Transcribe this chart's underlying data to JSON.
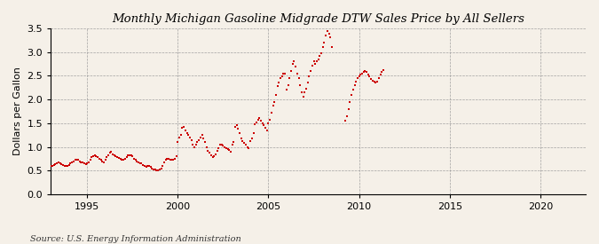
{
  "title": "Monthly Michigan Gasoline Midgrade DTW Sales Price by All Sellers",
  "ylabel": "Dollars per Gallon",
  "source": "Source: U.S. Energy Information Administration",
  "background_color": "#f5f0e8",
  "marker_color": "#cc0000",
  "xlim": [
    1993.0,
    2022.5
  ],
  "ylim": [
    0.0,
    3.5
  ],
  "yticks": [
    0.0,
    0.5,
    1.0,
    1.5,
    2.0,
    2.5,
    3.0,
    3.5
  ],
  "xticks": [
    1995,
    2000,
    2005,
    2010,
    2015,
    2020
  ],
  "data": {
    "dates": [
      1993.0,
      1993.08,
      1993.17,
      1993.25,
      1993.33,
      1993.42,
      1993.5,
      1993.58,
      1993.67,
      1993.75,
      1993.83,
      1993.92,
      1994.0,
      1994.08,
      1994.17,
      1994.25,
      1994.33,
      1994.42,
      1994.5,
      1994.58,
      1994.67,
      1994.75,
      1994.83,
      1994.92,
      1995.0,
      1995.08,
      1995.17,
      1995.25,
      1995.33,
      1995.42,
      1995.5,
      1995.58,
      1995.67,
      1995.75,
      1995.83,
      1995.92,
      1996.0,
      1996.08,
      1996.17,
      1996.25,
      1996.33,
      1996.42,
      1996.5,
      1996.58,
      1996.67,
      1996.75,
      1996.83,
      1996.92,
      1997.0,
      1997.08,
      1997.17,
      1997.25,
      1997.33,
      1997.42,
      1997.5,
      1997.58,
      1997.67,
      1997.75,
      1997.83,
      1997.92,
      1998.0,
      1998.08,
      1998.17,
      1998.25,
      1998.33,
      1998.42,
      1998.5,
      1998.58,
      1998.67,
      1998.75,
      1998.83,
      1998.92,
      1999.0,
      1999.08,
      1999.17,
      1999.25,
      1999.33,
      1999.42,
      1999.5,
      1999.58,
      1999.67,
      1999.75,
      1999.83,
      1999.92,
      2000.0,
      2000.08,
      2000.17,
      2000.25,
      2000.33,
      2000.42,
      2000.5,
      2000.58,
      2000.67,
      2000.75,
      2000.83,
      2000.92,
      2001.0,
      2001.08,
      2001.17,
      2001.25,
      2001.33,
      2001.42,
      2001.5,
      2001.58,
      2001.67,
      2001.75,
      2001.83,
      2001.92,
      2002.0,
      2002.08,
      2002.17,
      2002.25,
      2002.33,
      2002.42,
      2002.5,
      2002.58,
      2002.67,
      2002.75,
      2002.83,
      2002.92,
      2003.0,
      2003.08,
      2003.17,
      2003.25,
      2003.33,
      2003.42,
      2003.5,
      2003.58,
      2003.67,
      2003.75,
      2003.83,
      2003.92,
      2004.0,
      2004.08,
      2004.17,
      2004.25,
      2004.33,
      2004.42,
      2004.5,
      2004.58,
      2004.67,
      2004.75,
      2004.83,
      2004.92,
      2005.0,
      2005.08,
      2005.17,
      2005.25,
      2005.33,
      2005.42,
      2005.5,
      2005.58,
      2005.67,
      2005.75,
      2005.83,
      2005.92,
      2006.0,
      2006.08,
      2006.17,
      2006.25,
      2006.33,
      2006.42,
      2006.5,
      2006.58,
      2006.67,
      2006.75,
      2006.83,
      2006.92,
      2007.0,
      2007.08,
      2007.17,
      2007.25,
      2007.33,
      2007.42,
      2007.5,
      2007.58,
      2007.67,
      2007.75,
      2007.83,
      2007.92,
      2008.0,
      2008.08,
      2008.17,
      2008.25,
      2008.33,
      2008.42,
      2008.5,
      2009.25,
      2009.33,
      2009.42,
      2009.5,
      2009.58,
      2009.67,
      2009.75,
      2009.83,
      2009.92,
      2010.0,
      2010.08,
      2010.17,
      2010.25,
      2010.33,
      2010.42,
      2010.5,
      2010.58,
      2010.67,
      2010.75,
      2010.83,
      2010.92,
      2011.0,
      2011.08,
      2011.17,
      2011.25,
      2011.33
    ],
    "values": [
      0.6,
      0.6,
      0.62,
      0.63,
      0.65,
      0.67,
      0.66,
      0.64,
      0.62,
      0.6,
      0.6,
      0.6,
      0.62,
      0.65,
      0.68,
      0.7,
      0.72,
      0.73,
      0.72,
      0.7,
      0.68,
      0.67,
      0.65,
      0.63,
      0.65,
      0.68,
      0.72,
      0.78,
      0.8,
      0.82,
      0.8,
      0.78,
      0.75,
      0.72,
      0.7,
      0.68,
      0.73,
      0.78,
      0.82,
      0.88,
      0.9,
      0.85,
      0.83,
      0.8,
      0.78,
      0.77,
      0.75,
      0.73,
      0.73,
      0.75,
      0.78,
      0.82,
      0.83,
      0.82,
      0.8,
      0.75,
      0.72,
      0.7,
      0.68,
      0.65,
      0.65,
      0.62,
      0.6,
      0.58,
      0.6,
      0.6,
      0.58,
      0.55,
      0.53,
      0.52,
      0.5,
      0.5,
      0.52,
      0.55,
      0.6,
      0.68,
      0.73,
      0.75,
      0.75,
      0.73,
      0.72,
      0.73,
      0.75,
      0.8,
      1.1,
      1.2,
      1.25,
      1.4,
      1.42,
      1.35,
      1.3,
      1.25,
      1.2,
      1.15,
      1.05,
      1.0,
      1.05,
      1.1,
      1.15,
      1.2,
      1.25,
      1.18,
      1.1,
      1.0,
      0.92,
      0.88,
      0.83,
      0.78,
      0.8,
      0.85,
      0.92,
      0.98,
      1.05,
      1.05,
      1.02,
      1.0,
      0.98,
      0.95,
      0.93,
      0.9,
      1.05,
      1.1,
      1.42,
      1.45,
      1.38,
      1.3,
      1.18,
      1.12,
      1.08,
      1.05,
      1.0,
      0.98,
      1.12,
      1.18,
      1.3,
      1.48,
      1.52,
      1.58,
      1.6,
      1.55,
      1.5,
      1.45,
      1.4,
      1.35,
      1.5,
      1.58,
      1.72,
      1.88,
      1.95,
      2.1,
      2.28,
      2.35,
      2.45,
      2.48,
      2.55,
      2.55,
      2.2,
      2.3,
      2.45,
      2.6,
      2.75,
      2.8,
      2.7,
      2.55,
      2.45,
      2.3,
      2.15,
      2.05,
      2.15,
      2.22,
      2.35,
      2.48,
      2.6,
      2.72,
      2.8,
      2.75,
      2.8,
      2.85,
      2.92,
      2.98,
      3.1,
      3.2,
      3.35,
      3.45,
      3.38,
      3.32,
      3.1,
      1.55,
      1.65,
      1.8,
      1.95,
      2.1,
      2.2,
      2.3,
      2.38,
      2.45,
      2.48,
      2.52,
      2.55,
      2.58,
      2.6,
      2.58,
      2.52,
      2.48,
      2.44,
      2.4,
      2.38,
      2.35,
      2.38,
      2.45,
      2.52,
      2.58,
      2.62
    ]
  }
}
